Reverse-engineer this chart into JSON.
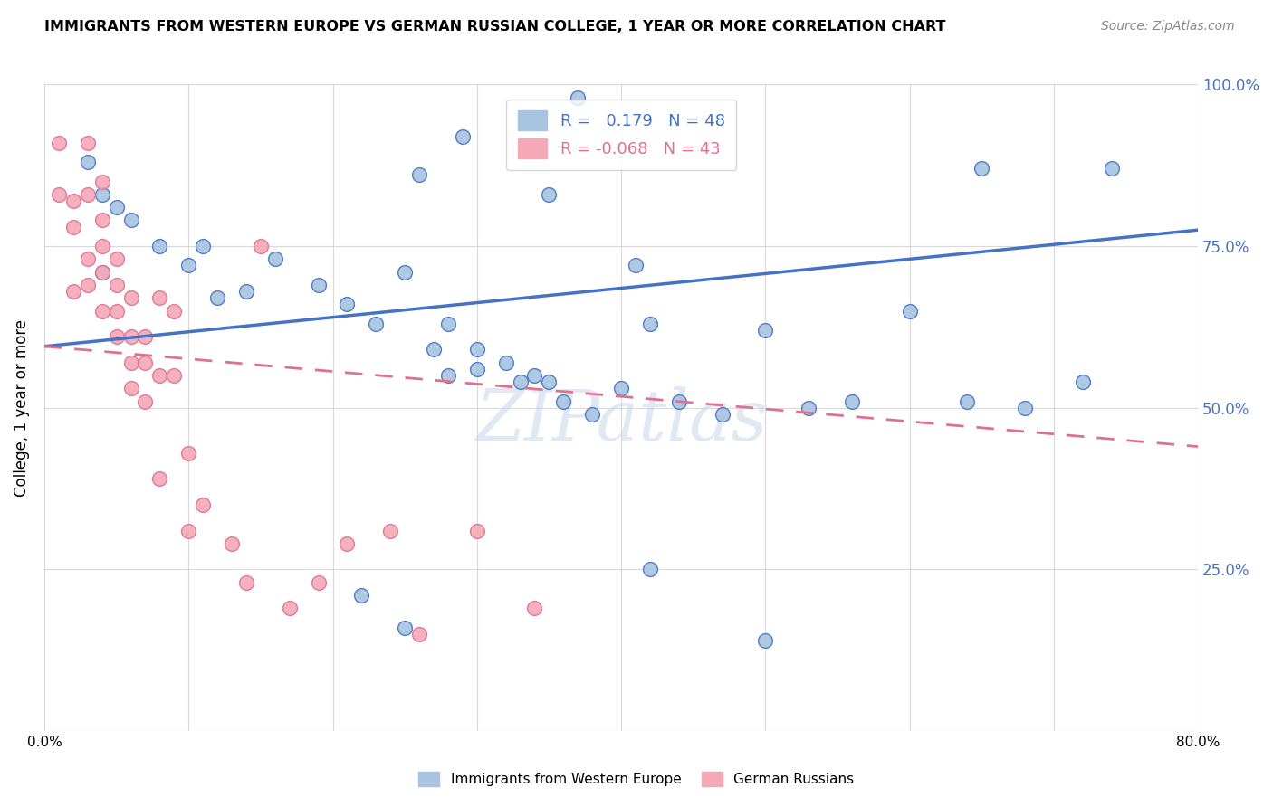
{
  "title": "IMMIGRANTS FROM WESTERN EUROPE VS GERMAN RUSSIAN COLLEGE, 1 YEAR OR MORE CORRELATION CHART",
  "source": "Source: ZipAtlas.com",
  "ylabel": "College, 1 year or more",
  "xmin": 0.0,
  "xmax": 0.8,
  "ymin": 0.0,
  "ymax": 1.0,
  "legend_labels_bottom": [
    "Immigrants from Western Europe",
    "German Russians"
  ],
  "R_blue": 0.179,
  "N_blue": 48,
  "R_pink": -0.068,
  "N_pink": 43,
  "blue_color": "#a8c4e0",
  "pink_color": "#f4a8b8",
  "blue_line_color": "#4472c4",
  "pink_line_color": "#e07090",
  "watermark": "ZIPatlas",
  "blue_scatter_x": [
    0.37,
    0.29,
    0.26,
    0.35,
    0.41,
    0.03,
    0.04,
    0.05,
    0.06,
    0.04,
    0.08,
    0.1,
    0.11,
    0.12,
    0.14,
    0.16,
    0.19,
    0.21,
    0.23,
    0.25,
    0.27,
    0.28,
    0.3,
    0.32,
    0.34,
    0.36,
    0.38,
    0.4,
    0.42,
    0.44,
    0.47,
    0.5,
    0.53,
    0.56,
    0.6,
    0.64,
    0.65,
    0.68,
    0.72,
    0.74,
    0.28,
    0.3,
    0.33,
    0.35,
    0.22,
    0.25,
    0.42,
    0.5
  ],
  "blue_scatter_y": [
    0.98,
    0.92,
    0.86,
    0.83,
    0.72,
    0.88,
    0.83,
    0.81,
    0.79,
    0.71,
    0.75,
    0.72,
    0.75,
    0.67,
    0.68,
    0.73,
    0.69,
    0.66,
    0.63,
    0.71,
    0.59,
    0.63,
    0.59,
    0.57,
    0.55,
    0.51,
    0.49,
    0.53,
    0.63,
    0.51,
    0.49,
    0.62,
    0.5,
    0.51,
    0.65,
    0.51,
    0.87,
    0.5,
    0.54,
    0.87,
    0.55,
    0.56,
    0.54,
    0.54,
    0.21,
    0.16,
    0.25,
    0.14
  ],
  "pink_scatter_x": [
    0.01,
    0.01,
    0.02,
    0.02,
    0.02,
    0.03,
    0.03,
    0.03,
    0.03,
    0.04,
    0.04,
    0.04,
    0.04,
    0.04,
    0.05,
    0.05,
    0.05,
    0.05,
    0.06,
    0.06,
    0.06,
    0.06,
    0.07,
    0.07,
    0.07,
    0.08,
    0.08,
    0.08,
    0.09,
    0.09,
    0.1,
    0.1,
    0.11,
    0.13,
    0.14,
    0.15,
    0.17,
    0.19,
    0.21,
    0.24,
    0.26,
    0.3,
    0.34
  ],
  "pink_scatter_y": [
    0.91,
    0.83,
    0.82,
    0.78,
    0.68,
    0.91,
    0.83,
    0.73,
    0.69,
    0.65,
    0.85,
    0.79,
    0.75,
    0.71,
    0.65,
    0.61,
    0.73,
    0.69,
    0.61,
    0.57,
    0.53,
    0.67,
    0.61,
    0.57,
    0.51,
    0.55,
    0.39,
    0.67,
    0.65,
    0.55,
    0.43,
    0.31,
    0.35,
    0.29,
    0.23,
    0.75,
    0.19,
    0.23,
    0.29,
    0.31,
    0.15,
    0.31,
    0.19
  ],
  "blue_trend_start_y": 0.595,
  "blue_trend_end_y": 0.775,
  "pink_trend_start_y": 0.595,
  "pink_trend_end_y": 0.44
}
